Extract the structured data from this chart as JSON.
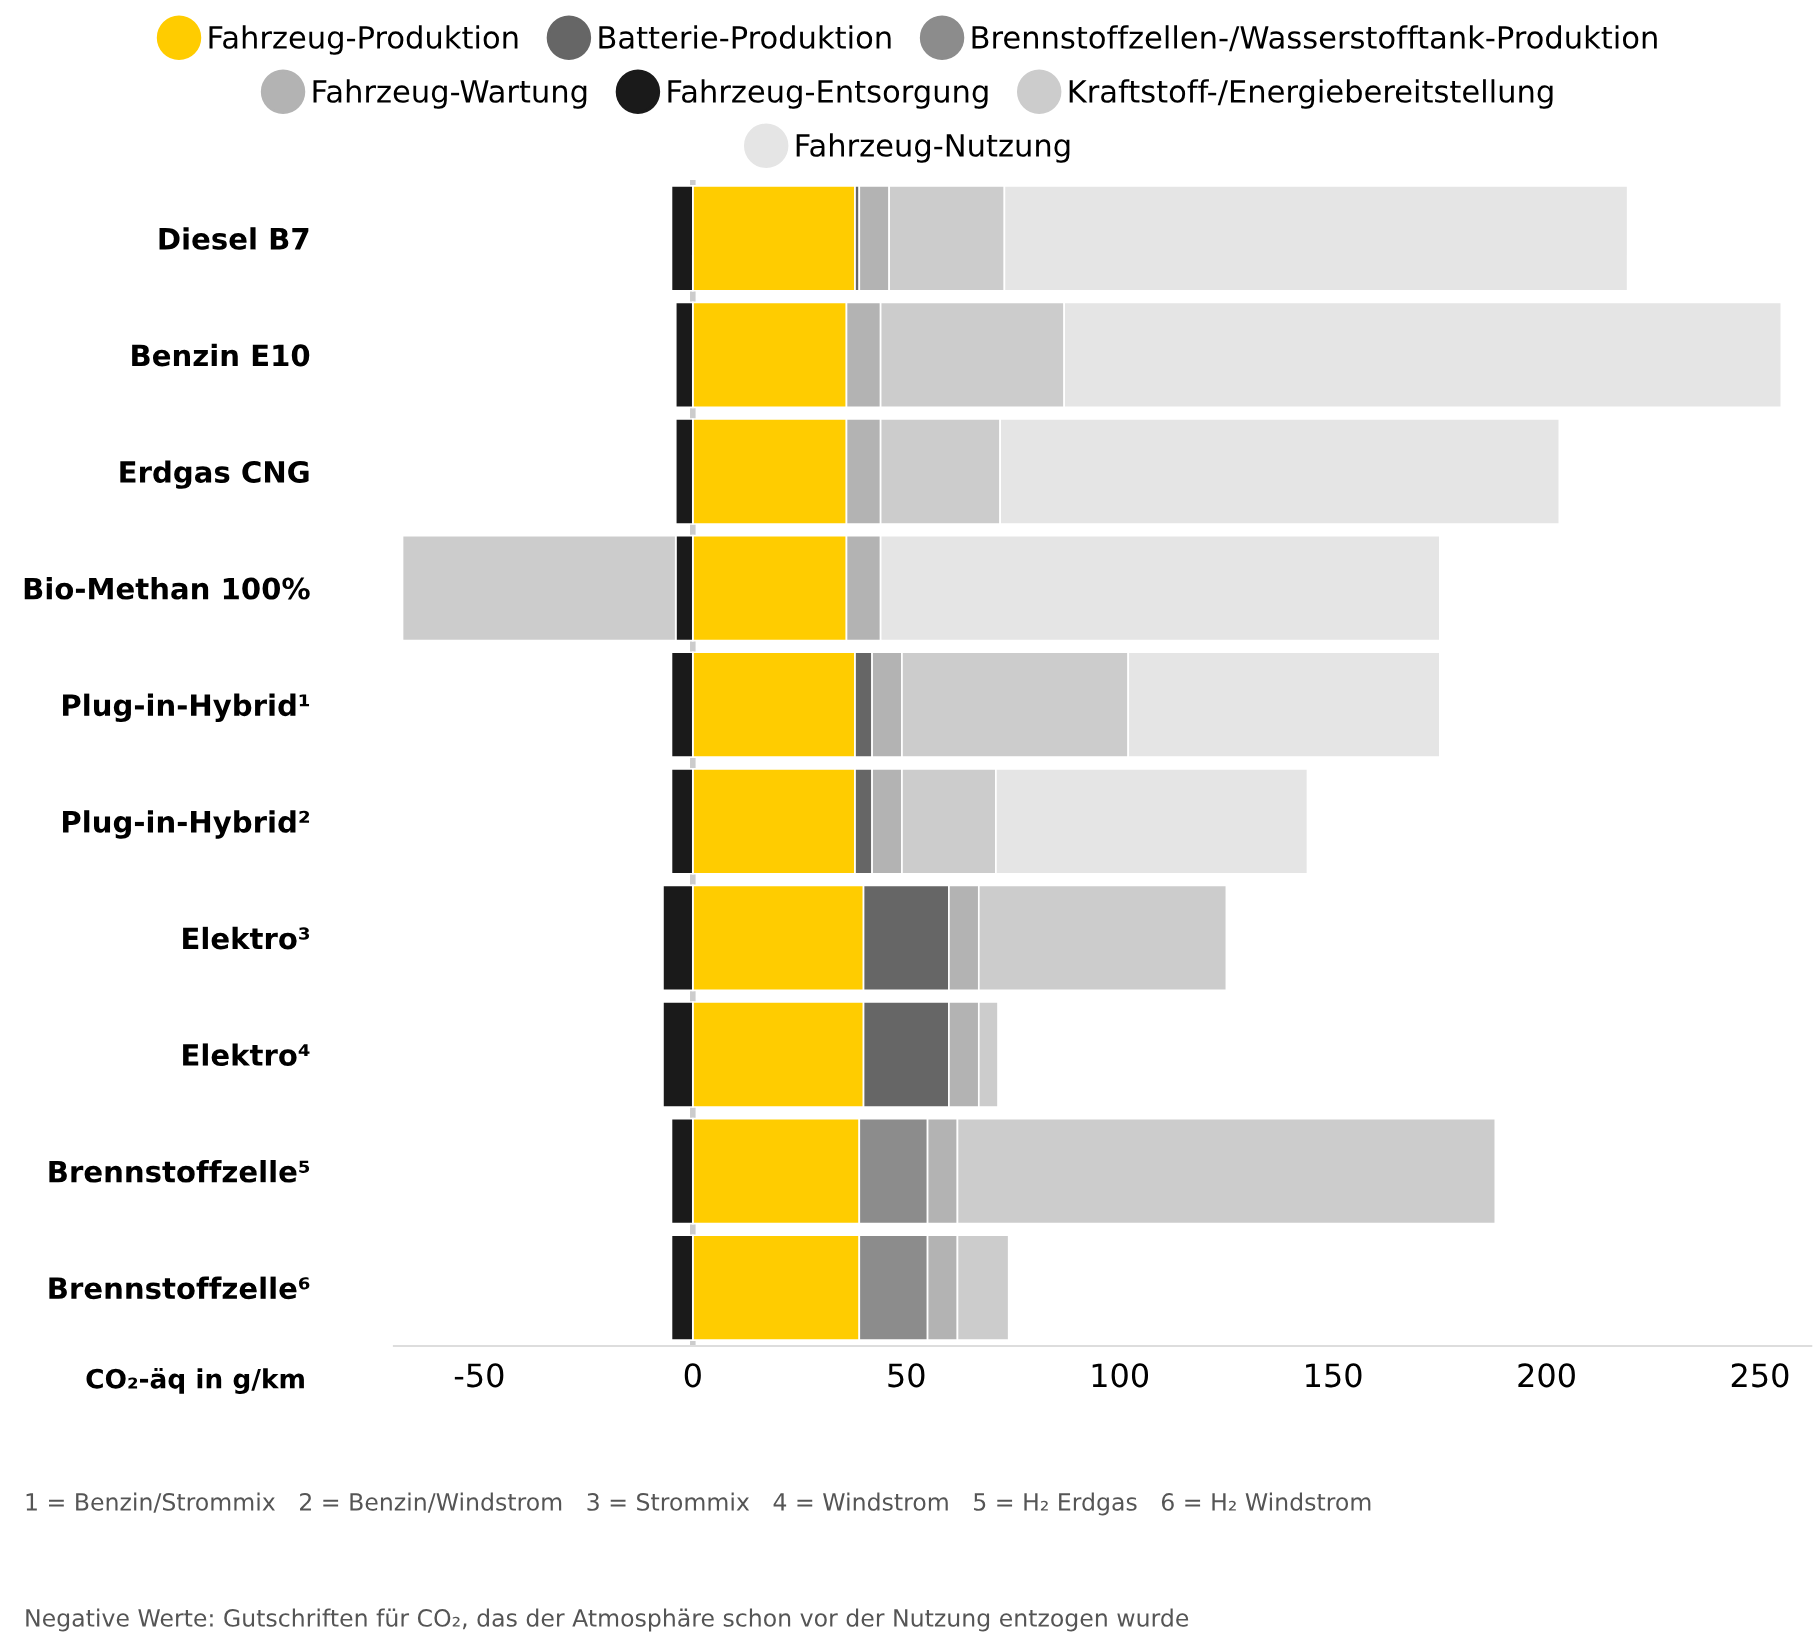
{
  "chart_data": {
    "type": "bar",
    "orientation": "horizontal",
    "stacked": true,
    "categories": [
      "Diesel B7",
      "Benzin E10",
      "Erdgas CNG",
      "Bio-Methan 100%",
      "Plug-in-Hybrid¹",
      "Plug-in-Hybrid²",
      "Elektro³",
      "Elektro⁴",
      "Brennstoffzelle⁵",
      "Brennstoffzelle⁶"
    ],
    "series": [
      {
        "name": "Fahrzeug-Produktion",
        "color": "#ffcc00",
        "values": [
          38,
          36,
          36,
          36,
          38,
          38,
          40,
          40,
          39,
          39
        ]
      },
      {
        "name": "Batterie-Produktion",
        "color": "#666666",
        "values": [
          1,
          null,
          null,
          null,
          4,
          4,
          20,
          20,
          null,
          null
        ]
      },
      {
        "name": "Brennstoffzellen-/Wasserstofftank-Produktion",
        "color": "#8c8c8c",
        "values": [
          null,
          null,
          null,
          null,
          null,
          null,
          null,
          null,
          16,
          16
        ]
      },
      {
        "name": "Fahrzeug-Wartung",
        "color": "#b3b3b3",
        "values": [
          7,
          8,
          8,
          8,
          7,
          7,
          7,
          7,
          7,
          7
        ]
      },
      {
        "name": "Fahrzeug-Entsorgung",
        "color": "#1a1a1a",
        "values": [
          -5,
          -4,
          -4,
          -4,
          -5,
          -5,
          -7,
          -7,
          -5,
          -5
        ]
      },
      {
        "name": "Kraftstoff-/Energiebereitstellung",
        "color": "#cccccc",
        "values": [
          27,
          43,
          28,
          -64,
          53,
          22,
          58,
          4.5,
          126,
          12
        ]
      },
      {
        "name": "Fahrzeug-Nutzung",
        "color": "#e5e5e5",
        "values": [
          146,
          168,
          131,
          131,
          73,
          73,
          null,
          null,
          null,
          null
        ]
      }
    ],
    "xlabel": "CO₂-äq in g/km",
    "xlim": [
      -70,
      262
    ],
    "xticks": [
      -50,
      0,
      50,
      100,
      150,
      200,
      250
    ],
    "ref_lines": [
      {
        "axis": "x",
        "value": 0,
        "color": "#cccccc"
      }
    ],
    "legend": "top",
    "grid": false,
    "annotations": [
      "1 = Benzin/Strommix   2 = Benzin/Windstrom   3 = Strommix   4 = Windstrom   5 = H₂ Erdgas   6 = H₂ Windstrom",
      "Negative Werte: Gutschriften für CO₂, das der Atmosphäre schon vor der Nutzung entzogen wurde"
    ]
  }
}
